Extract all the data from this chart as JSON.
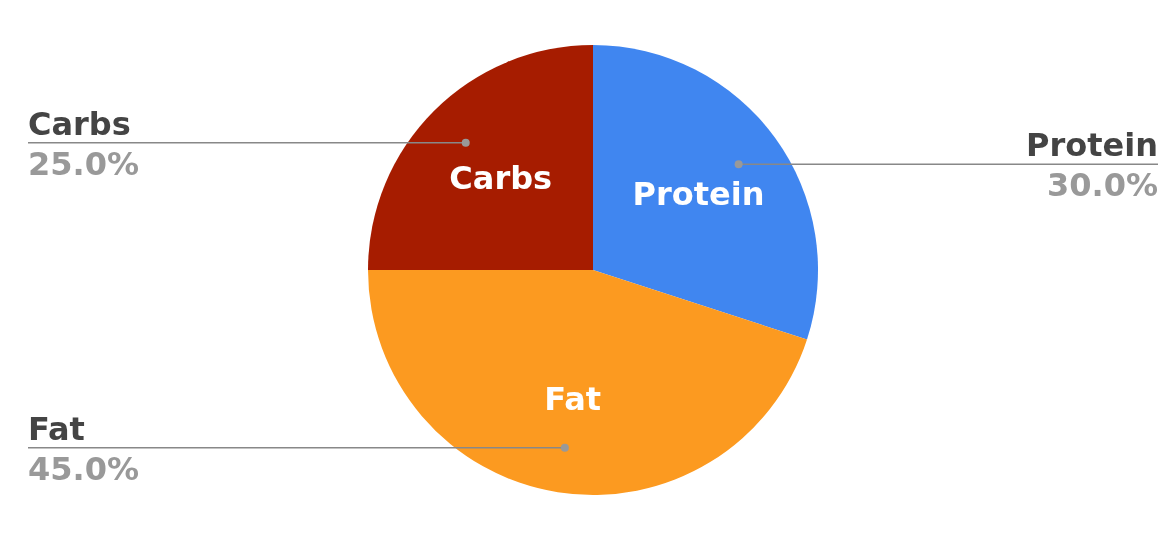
{
  "chart_data": {
    "type": "pie",
    "categories": [
      "Protein",
      "Fat",
      "Carbs"
    ],
    "values": [
      30,
      45,
      25
    ],
    "colors": [
      "#4086f0",
      "#fc9a20",
      "#a61c00"
    ],
    "value_labels": [
      "30.0%",
      "45.0%",
      "25.0%"
    ]
  }
}
